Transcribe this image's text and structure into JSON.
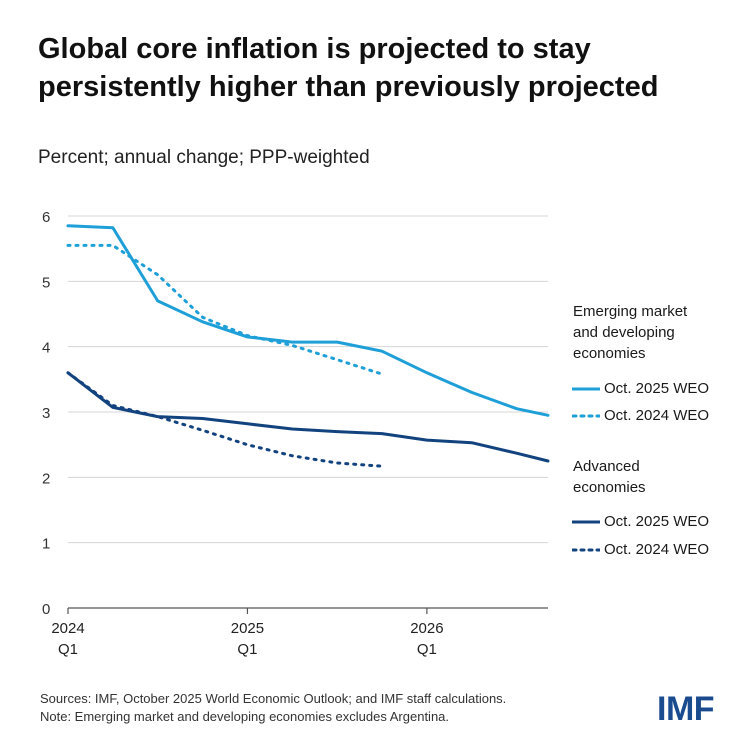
{
  "title_line1": "Global core inflation is projected to stay",
  "title_line2": "persistently higher than previously projected",
  "subtitle": "Percent; annual change; PPP-weighted",
  "colors": {
    "emde": "#1e9fd8",
    "adv": "#13437f",
    "grid": "#d4d4d4",
    "axis": "#555555"
  },
  "legend": {
    "emde_heading_1": "Emerging market",
    "emde_heading_2": "and developing",
    "emde_heading_3": "economies",
    "adv_heading_1": "Advanced",
    "adv_heading_2": "economies",
    "oct2025": "Oct. 2025 WEO",
    "oct2024": "Oct. 2024 WEO"
  },
  "footer": {
    "sources": "Sources: IMF, October 2025 World Economic Outlook; and IMF staff calculations.",
    "note": "Note: Emerging market and developing economies excludes Argentina."
  },
  "logo_text": "IMF",
  "chart_data": {
    "type": "line",
    "title": "Global core inflation is projected to stay persistently higher than previously projected",
    "ylabel": "Percent; annual change; PPP-weighted",
    "ylim": [
      0,
      6
    ],
    "yticks": [
      0,
      1,
      2,
      3,
      4,
      5,
      6
    ],
    "xlim": [
      0,
      10.7
    ],
    "xticks": [
      {
        "x": 0,
        "year": "2024",
        "quarter": "Q1"
      },
      {
        "x": 4,
        "year": "2025",
        "quarter": "Q1"
      },
      {
        "x": 8,
        "year": "2026",
        "quarter": "Q1"
      }
    ],
    "series": [
      {
        "name": "Emerging market and developing economies – Oct. 2025 WEO",
        "group": "emde",
        "style": "solid",
        "x": [
          0,
          1,
          2,
          3,
          4,
          5,
          6,
          7,
          8,
          9,
          10,
          10.7
        ],
        "y": [
          5.85,
          5.82,
          4.7,
          4.38,
          4.15,
          4.07,
          4.07,
          3.93,
          3.6,
          3.3,
          3.05,
          2.95
        ]
      },
      {
        "name": "Emerging market and developing economies – Oct. 2024 WEO",
        "group": "emde",
        "style": "dotted",
        "x": [
          0,
          1,
          2,
          3,
          4,
          5,
          6,
          7
        ],
        "y": [
          5.55,
          5.55,
          5.1,
          4.45,
          4.17,
          4.02,
          3.8,
          3.58
        ]
      },
      {
        "name": "Advanced economies – Oct. 2025 WEO",
        "group": "adv",
        "style": "solid",
        "x": [
          0,
          1,
          2,
          3,
          4,
          5,
          6,
          7,
          8,
          9,
          10,
          10.7
        ],
        "y": [
          3.6,
          3.07,
          2.93,
          2.9,
          2.82,
          2.74,
          2.7,
          2.67,
          2.57,
          2.53,
          2.37,
          2.25
        ]
      },
      {
        "name": "Advanced economies – Oct. 2024 WEO",
        "group": "adv",
        "style": "dotted",
        "x": [
          0,
          1,
          2,
          3,
          4,
          5,
          6,
          7
        ],
        "y": [
          3.6,
          3.1,
          2.93,
          2.72,
          2.5,
          2.33,
          2.22,
          2.17
        ]
      }
    ]
  }
}
